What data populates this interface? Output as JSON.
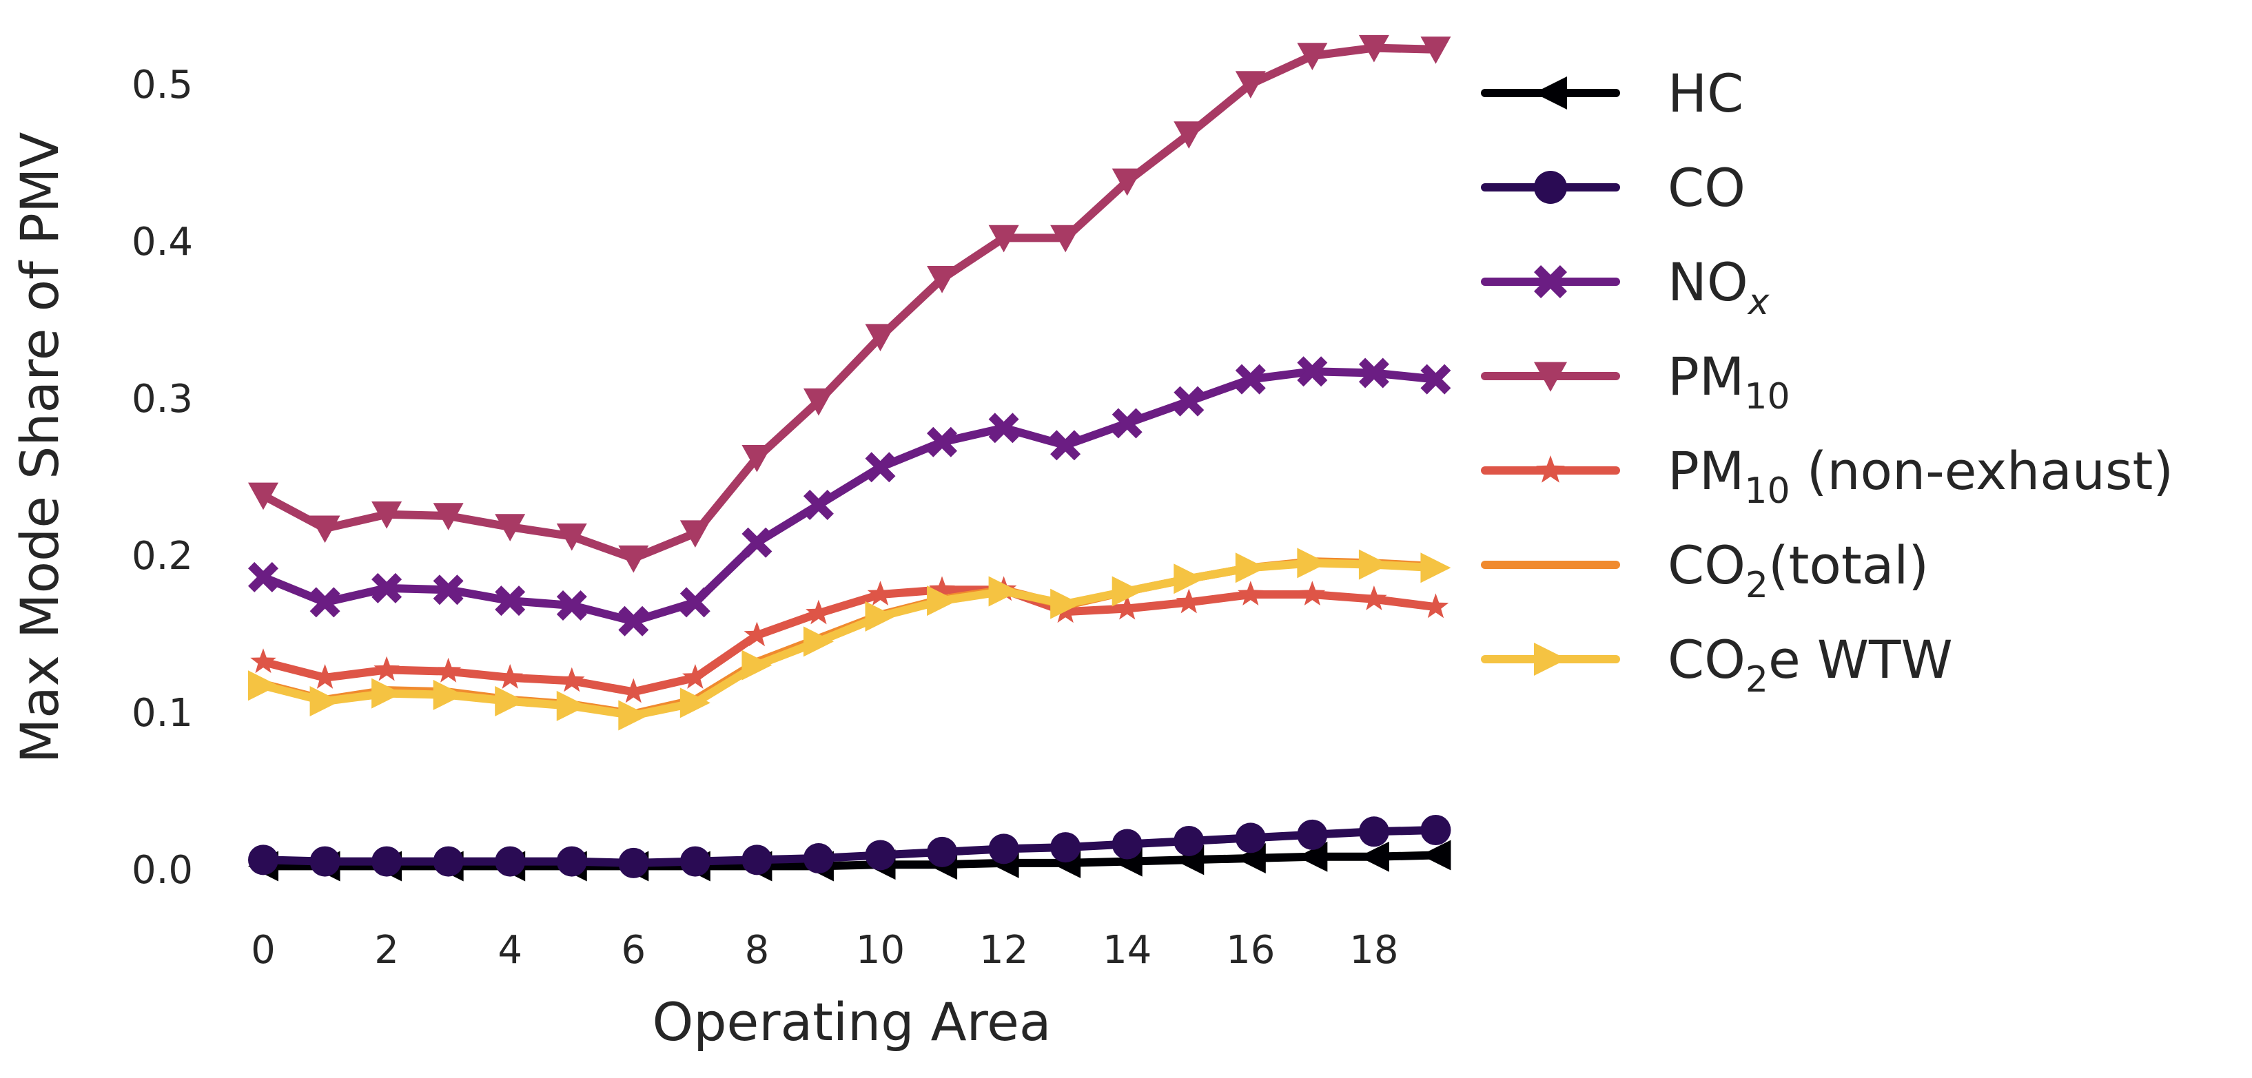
{
  "chart_data": {
    "type": "line",
    "title": "",
    "xlabel": "Operating Area",
    "ylabel": "Max Mode Share of PMV",
    "xlim": [
      -0.5,
      19.5
    ],
    "ylim": [
      -0.015,
      0.535
    ],
    "x_ticks": [
      0,
      2,
      4,
      6,
      8,
      10,
      12,
      14,
      16,
      18
    ],
    "x_tick_labels": [
      "0",
      "2",
      "4",
      "6",
      "8",
      "10",
      "12",
      "14",
      "16",
      "18"
    ],
    "y_ticks": [
      0.0,
      0.1,
      0.2,
      0.3,
      0.4,
      0.5
    ],
    "y_tick_labels": [
      "0.0",
      "0.1",
      "0.2",
      "0.3",
      "0.4",
      "0.5"
    ],
    "grid": false,
    "legend_position": "right",
    "x": [
      0,
      1,
      2,
      3,
      4,
      5,
      6,
      7,
      8,
      9,
      10,
      11,
      12,
      13,
      14,
      15,
      16,
      17,
      18,
      19
    ],
    "series": [
      {
        "name": "HC",
        "name_base": "HC",
        "name_sub": "",
        "name_tail": "",
        "marker": "triangle-left",
        "color": "#000004",
        "values": [
          0.002,
          0.002,
          0.002,
          0.002,
          0.002,
          0.002,
          0.002,
          0.002,
          0.002,
          0.002,
          0.003,
          0.003,
          0.004,
          0.004,
          0.005,
          0.006,
          0.007,
          0.008,
          0.008,
          0.009
        ]
      },
      {
        "name": "CO",
        "name_base": "CO",
        "name_sub": "",
        "name_tail": "",
        "marker": "circle",
        "color": "#2a0b54",
        "values": [
          0.006,
          0.005,
          0.005,
          0.005,
          0.005,
          0.005,
          0.004,
          0.005,
          0.006,
          0.007,
          0.009,
          0.011,
          0.013,
          0.014,
          0.016,
          0.018,
          0.02,
          0.022,
          0.024,
          0.025
        ]
      },
      {
        "name": "NOx",
        "name_base": "NO",
        "name_sub": "x",
        "name_tail": "",
        "marker": "x-filled",
        "color": "#6b1d83",
        "values": [
          0.186,
          0.17,
          0.179,
          0.178,
          0.171,
          0.168,
          0.158,
          0.17,
          0.208,
          0.232,
          0.256,
          0.272,
          0.281,
          0.27,
          0.284,
          0.298,
          0.312,
          0.317,
          0.316,
          0.312
        ]
      },
      {
        "name": "PM10",
        "name_base": "PM",
        "name_sub": "10",
        "name_tail": "",
        "marker": "triangle-down",
        "color": "#a83a64",
        "values": [
          0.238,
          0.217,
          0.226,
          0.225,
          0.218,
          0.212,
          0.198,
          0.214,
          0.262,
          0.298,
          0.339,
          0.376,
          0.402,
          0.402,
          0.438,
          0.468,
          0.5,
          0.518,
          0.523,
          0.522
        ]
      },
      {
        "name": "PM10 (non-exhaust)",
        "name_base": "PM",
        "name_sub": "10",
        "name_tail": " (non-exhaust)",
        "marker": "star",
        "color": "#de5547",
        "values": [
          0.132,
          0.122,
          0.127,
          0.126,
          0.122,
          0.12,
          0.113,
          0.122,
          0.149,
          0.163,
          0.175,
          0.178,
          0.178,
          0.164,
          0.166,
          0.17,
          0.175,
          0.175,
          0.172,
          0.167
        ]
      },
      {
        "name": "CO2(total)",
        "name_base": "CO",
        "name_sub": "2",
        "name_tail": "(total)",
        "marker": "none",
        "color": "#f08a2e",
        "values": [
          0.118,
          0.108,
          0.114,
          0.113,
          0.108,
          0.105,
          0.099,
          0.108,
          0.132,
          0.147,
          0.162,
          0.172,
          0.178,
          0.168,
          0.177,
          0.185,
          0.192,
          0.196,
          0.195,
          0.193
        ]
      },
      {
        "name": "CO2e WTW",
        "name_base": "CO",
        "name_sub": "2",
        "name_tail": "e WTW",
        "marker": "triangle-right",
        "color": "#f5c342",
        "values": [
          0.117,
          0.107,
          0.112,
          0.111,
          0.107,
          0.104,
          0.098,
          0.106,
          0.13,
          0.145,
          0.161,
          0.171,
          0.177,
          0.169,
          0.177,
          0.185,
          0.192,
          0.195,
          0.194,
          0.192
        ]
      }
    ]
  }
}
